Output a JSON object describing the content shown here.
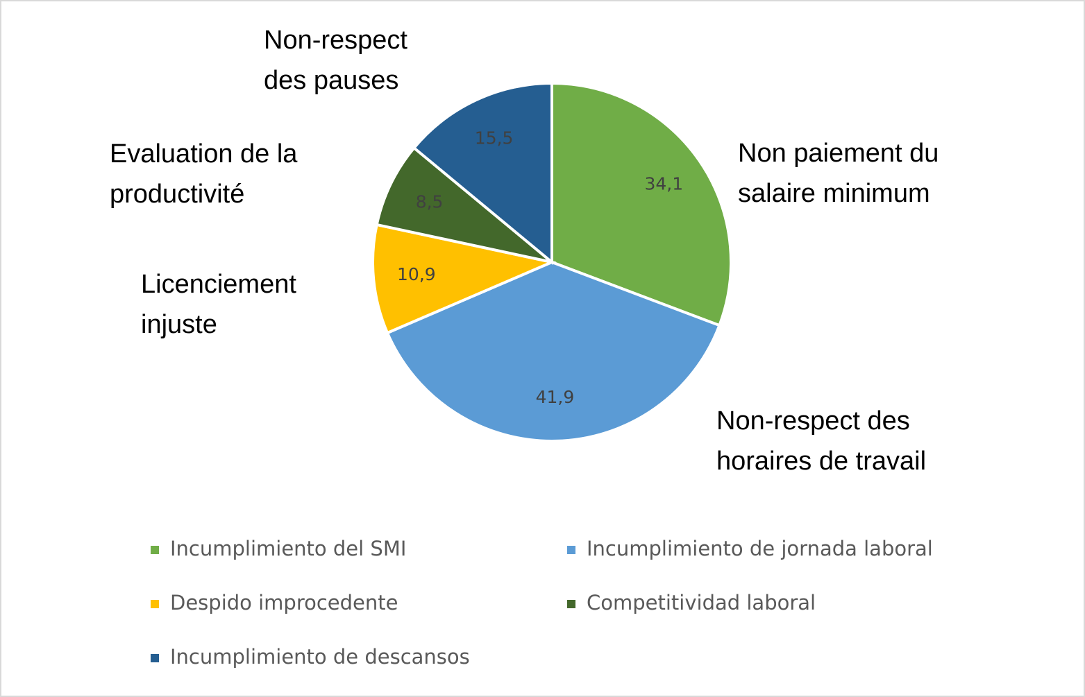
{
  "chart_data": {
    "type": "pie",
    "categories": [
      "Incumplimiento del SMI",
      "Incumplimiento de jornada laboral",
      "Despido improcedente",
      "Competitividad laboral",
      "Incumplimiento de descansos"
    ],
    "values": [
      34.1,
      41.9,
      10.9,
      8.5,
      15.5
    ],
    "value_labels": [
      "34,1",
      "41,9",
      "10,9",
      "8,5",
      "15,5"
    ],
    "colors": [
      "#70ad47",
      "#5b9bd5",
      "#ffc000",
      "#43682b",
      "#255e91"
    ],
    "annotations": [
      [
        "Non paiement du",
        "salaire minimum"
      ],
      [
        "Non-respect des",
        "horaires de travail"
      ],
      [
        "Licenciement",
        "injuste"
      ],
      [
        "Evaluation de la",
        "productivité"
      ],
      [
        "Non-respect",
        "des pauses"
      ]
    ],
    "legend": true
  }
}
